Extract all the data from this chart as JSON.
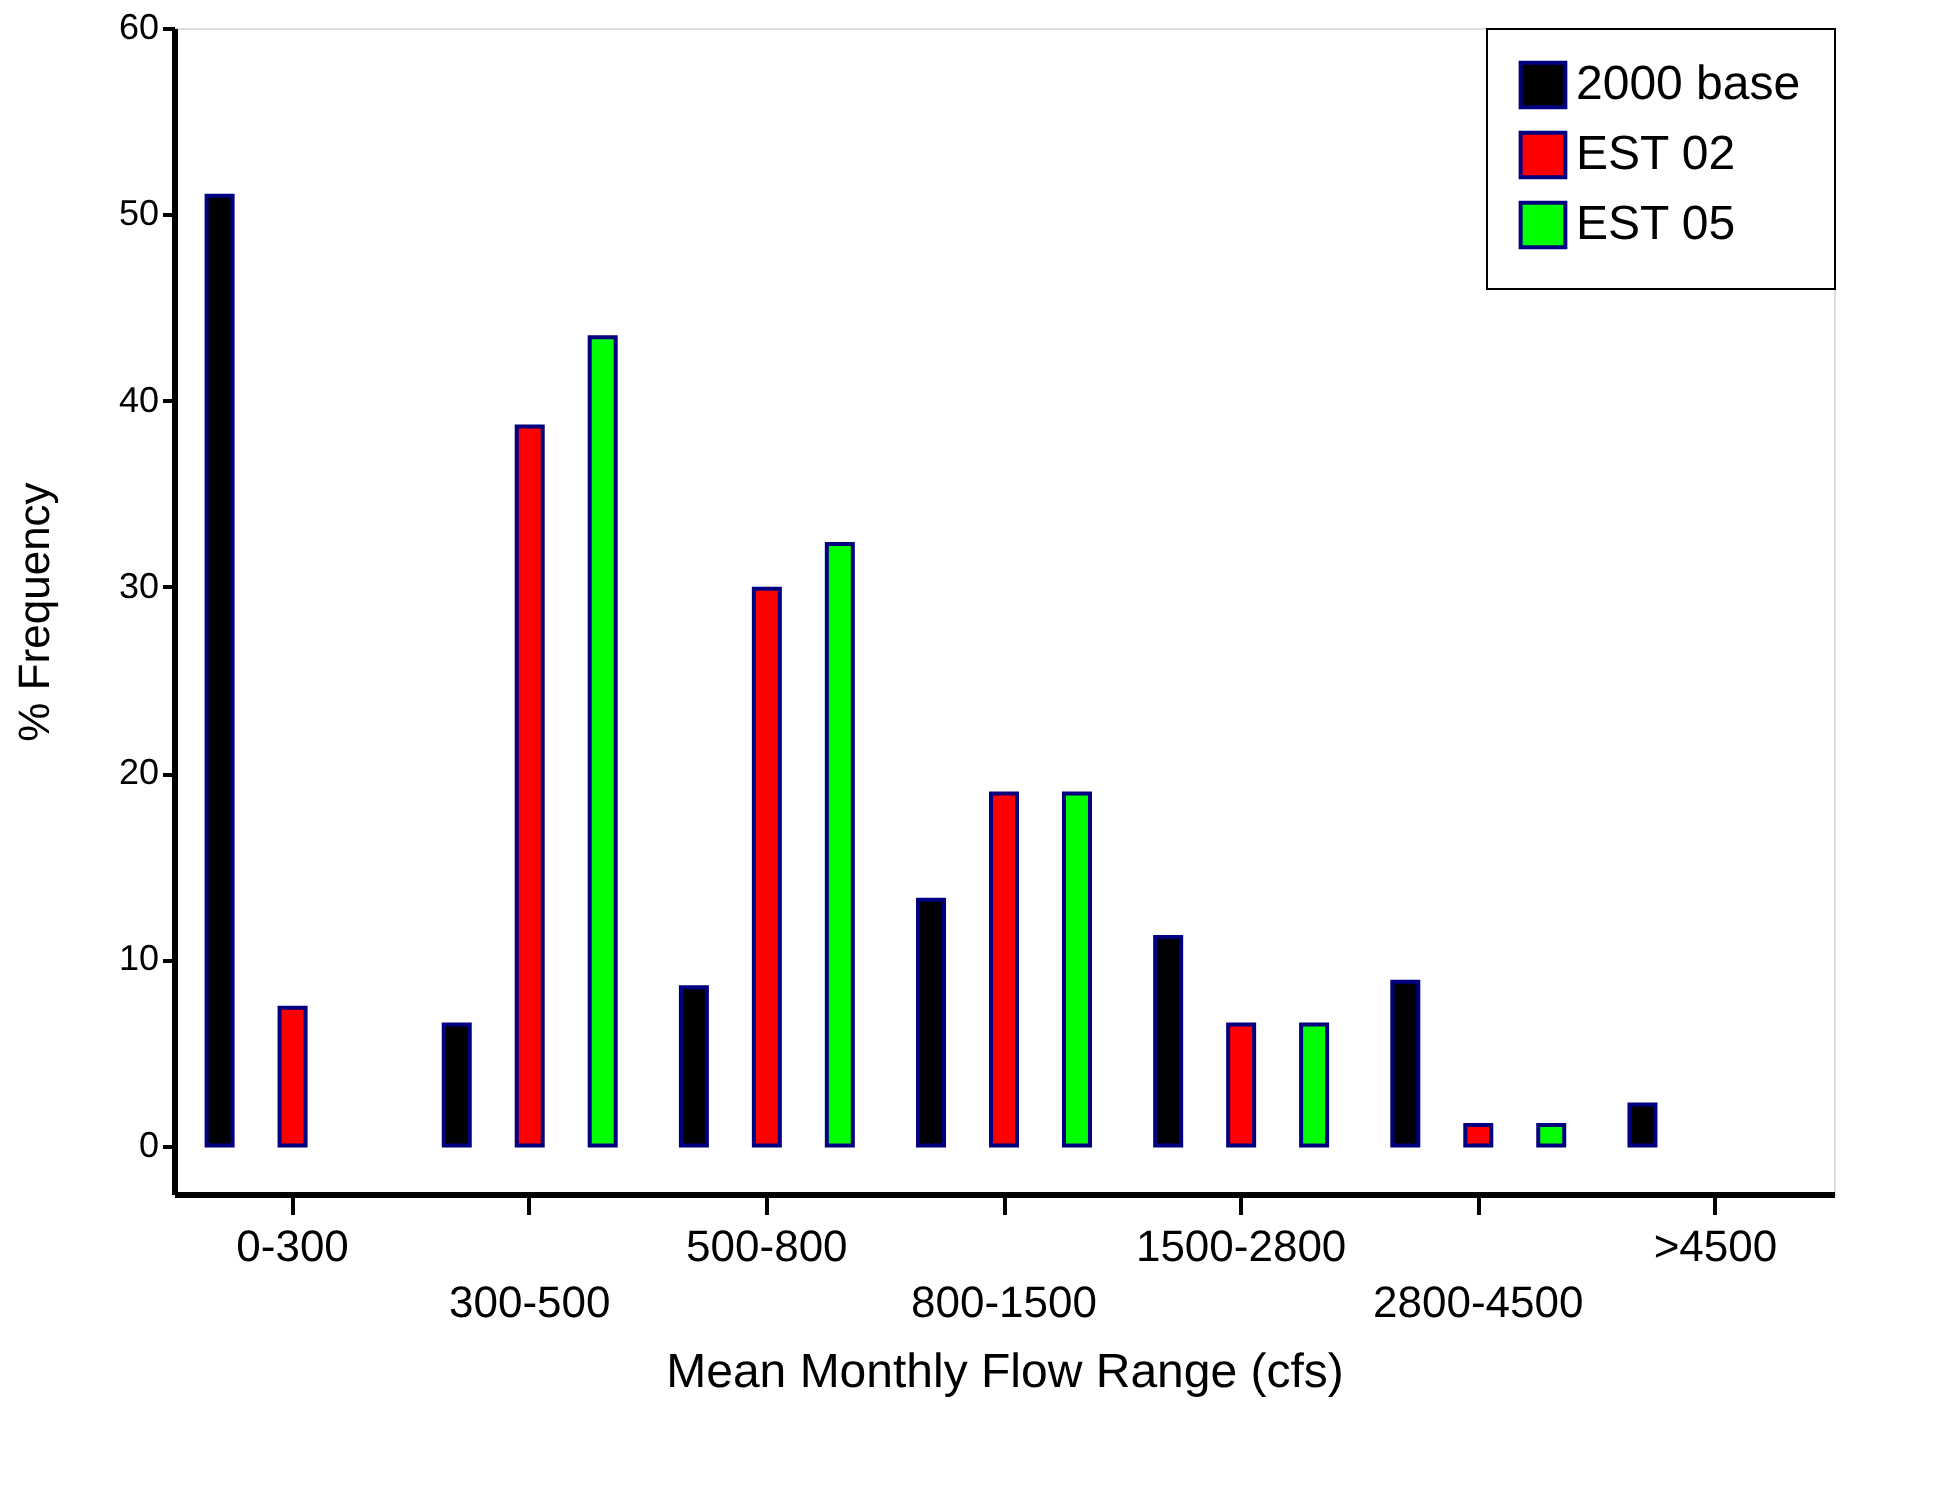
{
  "chart_data": {
    "type": "bar",
    "xlabel": "Mean Monthly Flow Range (cfs)",
    "ylabel": "% Frequency",
    "categories": [
      "0-300",
      "300-500",
      "500-800",
      "800-1500",
      "1500-2800",
      "2800-4500",
      ">4500"
    ],
    "series": [
      {
        "name": "2000 base",
        "color": "#000000",
        "values": [
          51,
          6.5,
          8.5,
          13.2,
          11.2,
          8.8,
          2.2
        ]
      },
      {
        "name": "EST 02",
        "color": "#ff0000",
        "values": [
          7.4,
          38.6,
          29.9,
          18.9,
          6.5,
          1.1,
          null
        ]
      },
      {
        "name": "EST 05",
        "color": "#00ff00",
        "values": [
          null,
          43.4,
          32.3,
          18.9,
          6.5,
          1.1,
          null
        ]
      }
    ],
    "ylim": [
      -2.6,
      60
    ],
    "yticks": [
      0,
      10,
      20,
      30,
      40,
      50,
      60
    ],
    "grid": false,
    "legend": "top right"
  }
}
